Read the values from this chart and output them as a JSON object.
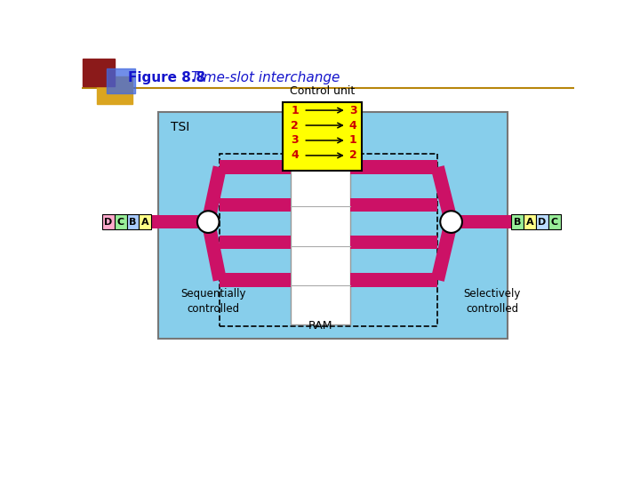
{
  "title_bold": "Figure 8.8",
  "title_italic": "Time-slot interchange",
  "title_color": "#1515CC",
  "bg_main": "#87CEEB",
  "yellow": "#FFFF00",
  "magenta": "#CC1166",
  "input_labels": [
    "D",
    "C",
    "B",
    "A"
  ],
  "input_colors": [
    "#FFAACC",
    "#99EE99",
    "#AACCFF",
    "#FFFF88"
  ],
  "output_labels": [
    "B",
    "A",
    "D",
    "C"
  ],
  "output_colors": [
    "#99EE99",
    "#FFFF88",
    "#BBDDFF",
    "#99EE99"
  ],
  "control_rows": [
    "1",
    "2",
    "3",
    "4"
  ],
  "control_targets": [
    "3",
    "4",
    "1",
    "2"
  ],
  "tsi_label": "TSI",
  "ram_label": "RAM",
  "ctrl_label": "Control unit",
  "seq_label": "Sequentially\ncontrolled",
  "sel_label": "Selectively\ncontrolled"
}
